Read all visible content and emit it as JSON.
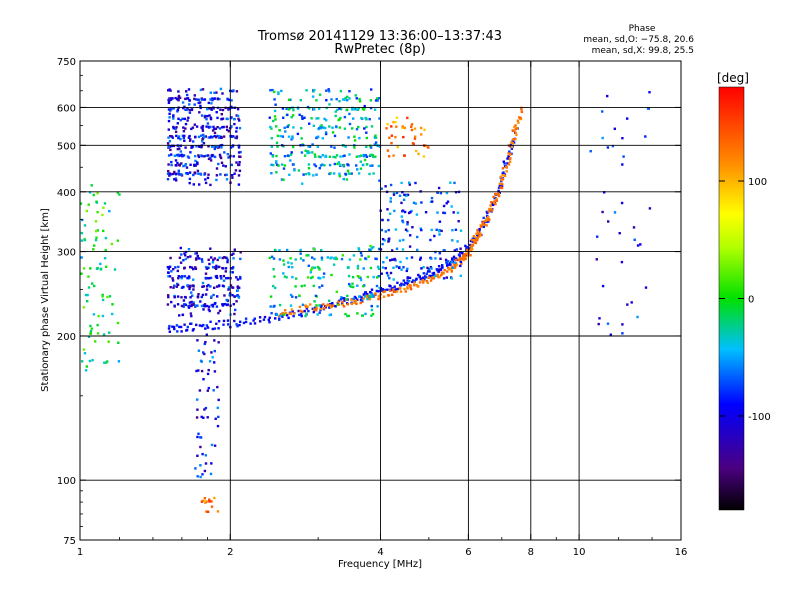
{
  "chart_data": {
    "type": "scatter",
    "title": "Tromsø 20141129 13:36:00–13:37:43",
    "subtitle": "RwPretec (8p)",
    "xlabel": "Frequency [MHz]",
    "ylabel": "Stationary phase Virtual Height [km]",
    "x_scale": "log",
    "y_scale": "log",
    "xlim": [
      1,
      16
    ],
    "ylim": [
      75,
      750
    ],
    "x_ticks": [
      1,
      2,
      4,
      6,
      8,
      10,
      16
    ],
    "y_ticks": [
      75,
      100,
      200,
      300,
      400,
      500,
      600,
      750
    ],
    "x_gridlines": [
      2,
      4,
      6,
      8,
      10
    ],
    "y_gridlines": [
      100,
      200,
      300,
      400,
      500,
      600
    ],
    "grid": true,
    "stats": {
      "heading": "Phase",
      "line_O": "mean, sd,O: −75.8, 20.6",
      "line_X": "mean, sd,X:  99.8, 25.5"
    },
    "colorbar": {
      "label": "[deg]",
      "range": [
        -180,
        180
      ],
      "ticks": [
        -100,
        0,
        100
      ],
      "colormap": "rainbow"
    },
    "series": [
      {
        "trace": "O-mode main trace",
        "phase": -90,
        "points": [
          [
            1.5,
            206
          ],
          [
            1.7,
            209
          ],
          [
            2.0,
            212
          ],
          [
            2.4,
            217
          ],
          [
            2.8,
            224
          ],
          [
            3.2,
            232
          ],
          [
            3.6,
            240
          ],
          [
            4.0,
            248
          ],
          [
            4.4,
            256
          ],
          [
            4.8,
            265
          ],
          [
            5.2,
            275
          ],
          [
            5.6,
            288
          ],
          [
            6.0,
            305
          ],
          [
            6.3,
            328
          ],
          [
            6.6,
            360
          ],
          [
            6.9,
            405
          ],
          [
            7.2,
            470
          ],
          [
            7.5,
            540
          ]
        ]
      },
      {
        "trace": "X-mode main trace",
        "phase": 125,
        "points": [
          [
            2.5,
            223
          ],
          [
            3.0,
            230
          ],
          [
            3.5,
            236
          ],
          [
            4.0,
            243
          ],
          [
            4.5,
            252
          ],
          [
            5.0,
            262
          ],
          [
            5.5,
            275
          ],
          [
            5.8,
            288
          ],
          [
            6.0,
            300
          ],
          [
            6.2,
            320
          ],
          [
            6.5,
            345
          ],
          [
            6.8,
            385
          ],
          [
            7.1,
            440
          ],
          [
            7.4,
            520
          ],
          [
            7.7,
            600
          ]
        ]
      },
      {
        "trace": "scattered cluster 1.5–2.1 MHz, 420–650 km",
        "phase": -100,
        "x_range": [
          1.5,
          2.1
        ],
        "y_range": [
          420,
          650
        ],
        "count": 420
      },
      {
        "trace": "scattered cluster 1.5–2.1 MHz, 220–300 km",
        "phase": -95,
        "x_range": [
          1.5,
          2.1
        ],
        "y_range": [
          220,
          300
        ],
        "count": 260
      },
      {
        "trace": "scattered cluster 2.4–4.0 MHz, 420–650 km",
        "phase": -40,
        "x_range": [
          2.4,
          4.0
        ],
        "y_range": [
          420,
          650
        ],
        "count": 330
      },
      {
        "trace": "scattered cluster 2.4–4.0 MHz, 220–310 km",
        "phase": -30,
        "x_range": [
          2.4,
          4.0
        ],
        "y_range": [
          220,
          310
        ],
        "count": 180
      },
      {
        "trace": "scattered cluster 4.0–5.8 MHz, 260–420 km",
        "phase": -80,
        "x_range": [
          4.0,
          5.8
        ],
        "y_range": [
          260,
          420
        ],
        "count": 170
      },
      {
        "trace": "spread echoes near 1.8 MHz, 100–200 km",
        "phase": -90,
        "x_range": [
          1.7,
          1.9
        ],
        "y_range": [
          100,
          200
        ],
        "count": 60
      },
      {
        "trace": "echoes near 1.8 MHz, 85–92 km",
        "phase": 130,
        "x_range": [
          1.75,
          1.9
        ],
        "y_range": [
          85,
          92
        ],
        "count": 14
      },
      {
        "trace": "scattered echoes below 1.2 MHz",
        "phase": -10,
        "x_range": [
          1.0,
          1.2
        ],
        "y_range": [
          170,
          420
        ],
        "count": 90
      },
      {
        "trace": "X-mode echoes 4.1–5.0 MHz near 480 km",
        "phase": 130,
        "x_range": [
          4.1,
          5.0
        ],
        "y_range": [
          470,
          560
        ],
        "count": 40
      },
      {
        "trace": "sparse echoes 10–14 MHz",
        "phase": -90,
        "x_range": [
          10.5,
          14.0
        ],
        "y_range": [
          200,
          650
        ],
        "count": 40
      }
    ]
  }
}
